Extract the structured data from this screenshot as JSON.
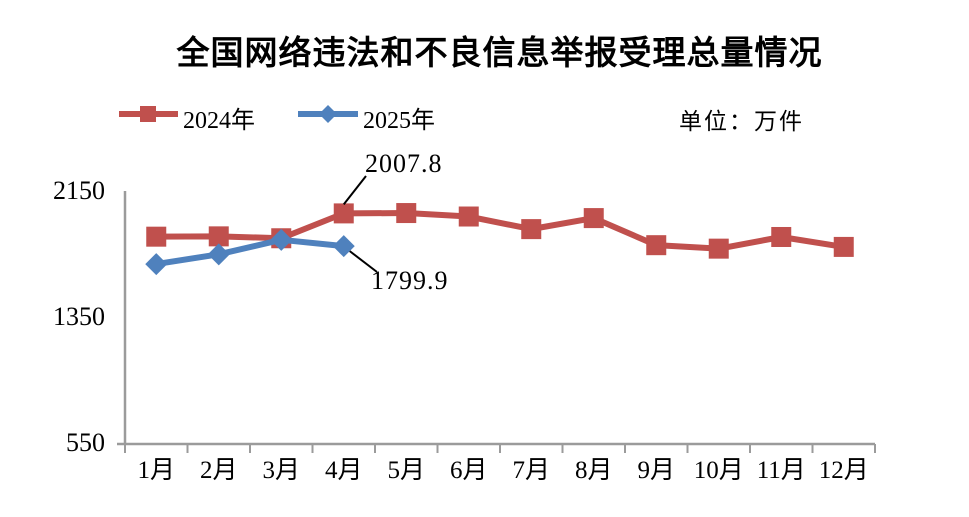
{
  "title": "全国网络违法和不良信息举报受理总量情况",
  "unit_label": "单位：万件",
  "legend": [
    {
      "label": "2024年",
      "color": "#C0504D",
      "marker": "square"
    },
    {
      "label": "2025年",
      "color": "#4F81BD",
      "marker": "diamond"
    }
  ],
  "chart_data": {
    "type": "line",
    "title": "全国网络违法和不良信息举报受理总量情况",
    "unit": "万件",
    "categories": [
      "1月",
      "2月",
      "3月",
      "4月",
      "5月",
      "6月",
      "7月",
      "8月",
      "9月",
      "10月",
      "11月",
      "12月"
    ],
    "series": [
      {
        "name": "2024年",
        "color": "#C0504D",
        "marker": "square",
        "values": [
          1860,
          1862,
          1850,
          2007.8,
          2010,
          1988,
          1908,
          1978,
          1806,
          1784,
          1858,
          1795
        ]
      },
      {
        "name": "2025年",
        "color": "#4F81BD",
        "marker": "diamond",
        "values": [
          1686,
          1748,
          1840,
          1799.9
        ]
      }
    ],
    "annotations": [
      {
        "text": "2007.8",
        "series_index": 0,
        "point_index": 3,
        "value": 2007.8
      },
      {
        "text": "1799.9",
        "series_index": 1,
        "point_index": 3,
        "value": 1799.9
      }
    ],
    "yticks": [
      2150,
      1350,
      550
    ],
    "ylim": [
      550,
      2150
    ],
    "grid": false,
    "legend_position": "top-left",
    "axis_color": "#9B9B9B",
    "text_color": "#000000"
  }
}
